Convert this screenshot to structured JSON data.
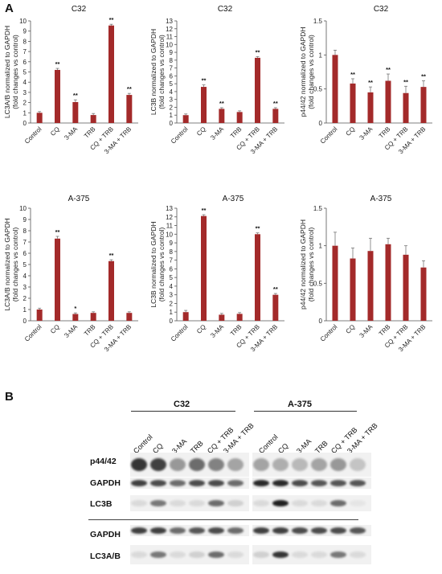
{
  "panels": {
    "a": "A",
    "b": "B"
  },
  "categories": [
    "Control",
    "CQ",
    "3-MA",
    "TRB",
    "CQ + TRB",
    "3-MA + TRB"
  ],
  "bar_color": "#a32a2a",
  "chart_data": [
    {
      "id": "c1",
      "type": "bar",
      "title": "C32",
      "ylabel": [
        "LC3A/B normalized to GAPDH",
        "(fold changes vs control)"
      ],
      "ylim": [
        0,
        10
      ],
      "yticks": [
        0,
        1,
        2,
        3,
        4,
        5,
        6,
        7,
        8,
        9,
        10
      ],
      "values": [
        1.0,
        5.2,
        2.05,
        0.78,
        9.55,
        2.75
      ],
      "errors": [
        0.12,
        0.15,
        0.22,
        0.15,
        0.12,
        0.15
      ],
      "significance": [
        "",
        "**",
        "**",
        "",
        "**",
        "**"
      ]
    },
    {
      "id": "c2",
      "type": "bar",
      "title": "C32",
      "ylabel": [
        "LC3B normalized to GAPDH",
        "(fold changes vs control)"
      ],
      "ylim": [
        0,
        13
      ],
      "yticks": [
        0,
        1,
        2,
        3,
        4,
        5,
        6,
        7,
        8,
        9,
        10,
        11,
        12,
        13
      ],
      "values": [
        1.0,
        4.6,
        1.8,
        1.4,
        8.3,
        1.8
      ],
      "errors": [
        0.15,
        0.25,
        0.15,
        0.15,
        0.15,
        0.15
      ],
      "significance": [
        "",
        "**",
        "**",
        "",
        "**",
        "**"
      ]
    },
    {
      "id": "c3",
      "type": "bar",
      "title": "C32",
      "ylabel": [
        "p44/42 normalized to GAPDH",
        "(fold changes vs control)"
      ],
      "ylim": [
        0,
        1.5
      ],
      "yticks": [
        0,
        0.5,
        1,
        1.5
      ],
      "values": [
        1.0,
        0.58,
        0.45,
        0.62,
        0.44,
        0.53
      ],
      "errors": [
        0.07,
        0.07,
        0.08,
        0.1,
        0.1,
        0.09
      ],
      "significance": [
        "",
        "**",
        "**",
        "**",
        "**",
        "**"
      ]
    },
    {
      "id": "a1",
      "type": "bar",
      "title": "A-375",
      "ylabel": [
        "LC3A/B normalized to GAPDH",
        "(fold changes vs control)"
      ],
      "ylim": [
        0,
        10
      ],
      "yticks": [
        0,
        1,
        2,
        3,
        4,
        5,
        6,
        7,
        8,
        9,
        10
      ],
      "values": [
        1.0,
        7.3,
        0.6,
        0.7,
        5.3,
        0.7
      ],
      "errors": [
        0.12,
        0.2,
        0.1,
        0.1,
        0.12,
        0.1
      ],
      "significance": [
        "",
        "**",
        "*",
        "",
        "**",
        ""
      ]
    },
    {
      "id": "a2",
      "type": "bar",
      "title": "A-375",
      "ylabel": [
        "LC3B normalized to GAPDH",
        "(fold changes vs control)"
      ],
      "ylim": [
        0,
        13
      ],
      "yticks": [
        0,
        1,
        2,
        3,
        4,
        5,
        6,
        7,
        8,
        9,
        10,
        11,
        12,
        13
      ],
      "values": [
        1.0,
        12.1,
        0.7,
        0.8,
        10.0,
        3.0
      ],
      "errors": [
        0.2,
        0.15,
        0.15,
        0.15,
        0.15,
        0.15
      ],
      "significance": [
        "",
        "**",
        "",
        "",
        "**",
        "**"
      ]
    },
    {
      "id": "a3",
      "type": "bar",
      "title": "A-375",
      "ylabel": [
        "p44/42 normalized to GAPDH",
        "(fold changes vs control)"
      ],
      "ylim": [
        0,
        1.5
      ],
      "yticks": [
        0,
        0.5,
        1,
        1.5
      ],
      "values": [
        1.0,
        0.83,
        0.93,
        1.02,
        0.88,
        0.71
      ],
      "errors": [
        0.18,
        0.14,
        0.17,
        0.08,
        0.12,
        0.09
      ],
      "significance": [
        "",
        "",
        "",
        "",
        "",
        ""
      ]
    }
  ],
  "western_blot": {
    "groups": [
      "C32",
      "A-375"
    ],
    "lanes": [
      "Control",
      "CQ",
      "3-MA",
      "TRB",
      "CQ + TRB",
      "3-MA + TRB"
    ],
    "rows": [
      "p44/42",
      "GAPDH",
      "LC3B",
      "GAPDH",
      "LC3A/B"
    ]
  }
}
